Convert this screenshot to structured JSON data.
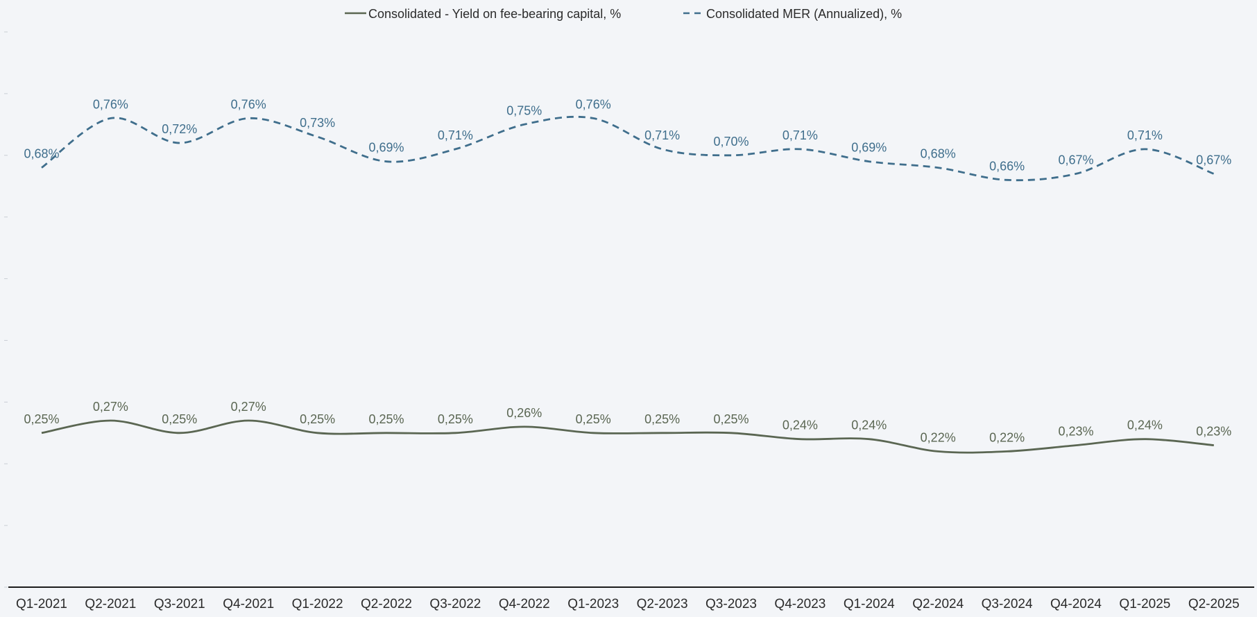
{
  "chart_data": {
    "type": "line",
    "title": "",
    "xlabel": "",
    "ylabel": "",
    "ylim": [
      0,
      0.9
    ],
    "grid": false,
    "legend_position": "top-center",
    "categories": [
      "Q1-2021",
      "Q2-2021",
      "Q3-2021",
      "Q4-2021",
      "Q1-2022",
      "Q2-2022",
      "Q3-2022",
      "Q4-2022",
      "Q1-2023",
      "Q2-2023",
      "Q3-2023",
      "Q4-2023",
      "Q1-2024",
      "Q2-2024",
      "Q3-2024",
      "Q4-2024",
      "Q1-2025",
      "Q2-2025"
    ],
    "series": [
      {
        "name": "Consolidated - Yield on fee-bearing capital, %",
        "style": "solid",
        "color": "#5a6652",
        "values": [
          0.25,
          0.27,
          0.25,
          0.27,
          0.25,
          0.25,
          0.25,
          0.26,
          0.25,
          0.25,
          0.25,
          0.24,
          0.24,
          0.22,
          0.22,
          0.23,
          0.24,
          0.23
        ],
        "labels": [
          "0,25%",
          "0,27%",
          "0,25%",
          "0,27%",
          "0,25%",
          "0,25%",
          "0,25%",
          "0,26%",
          "0,25%",
          "0,25%",
          "0,25%",
          "0,24%",
          "0,24%",
          "0,22%",
          "0,22%",
          "0,23%",
          "0,24%",
          "0,23%"
        ]
      },
      {
        "name": "Consolidated MER (Annualized), %",
        "style": "dashed",
        "color": "#3f6e8c",
        "values": [
          0.68,
          0.76,
          0.72,
          0.76,
          0.73,
          0.69,
          0.71,
          0.75,
          0.76,
          0.71,
          0.7,
          0.71,
          0.69,
          0.68,
          0.66,
          0.67,
          0.71,
          0.67
        ],
        "labels": [
          "0,68%",
          "0,76%",
          "0,72%",
          "0,76%",
          "0,73%",
          "0,69%",
          "0,71%",
          "0,75%",
          "0,76%",
          "0,71%",
          "0,70%",
          "0,71%",
          "0,69%",
          "0,68%",
          "0,66%",
          "0,67%",
          "0,71%",
          "0,67%"
        ]
      }
    ]
  }
}
